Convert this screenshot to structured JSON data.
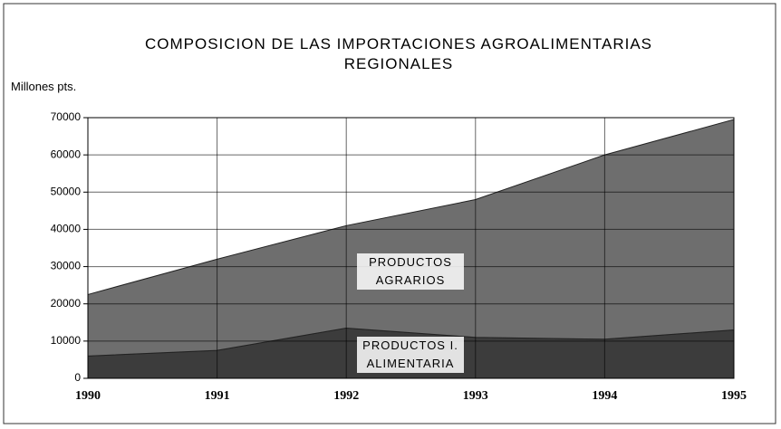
{
  "chart_data": {
    "type": "stacked_area",
    "title": "COMPOSICION DE LAS IMPORTACIONES AGROALIMENTARIAS REGIONALES",
    "y_label": "Millones pts.",
    "categories": [
      "1990",
      "1991",
      "1992",
      "1993",
      "1994",
      "1995"
    ],
    "series": [
      {
        "name": "PRODUCTOS I. ALIMENTARIA",
        "color": "#3c3c3c",
        "values": [
          6000,
          7500,
          13500,
          11000,
          10500,
          13000
        ]
      },
      {
        "name": "PRODUCTOS AGRARIOS",
        "color": "#6e6e6e",
        "values": [
          16500,
          24500,
          27500,
          37000,
          49500,
          56500
        ]
      }
    ],
    "ylim": [
      0,
      70000
    ],
    "yticks": [
      0,
      10000,
      20000,
      30000,
      40000,
      50000,
      60000,
      70000
    ],
    "grid": true
  }
}
